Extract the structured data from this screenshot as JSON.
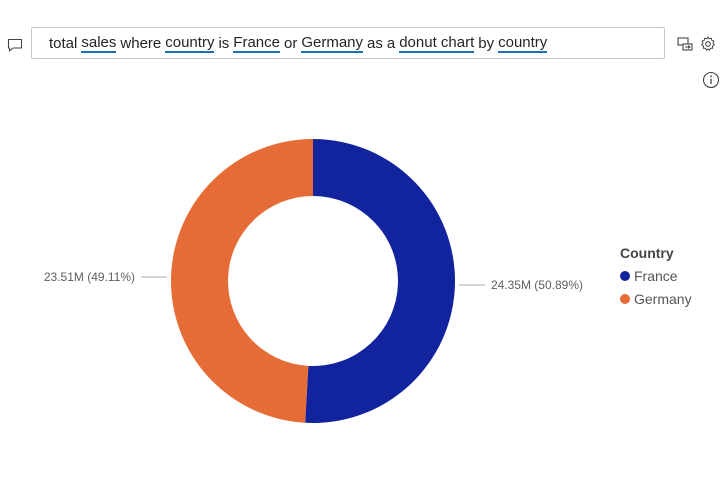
{
  "question": {
    "tokens": [
      {
        "text": "total",
        "term": false
      },
      {
        "text": "sales",
        "term": true
      },
      {
        "text": "where",
        "term": false
      },
      {
        "text": "country",
        "term": true
      },
      {
        "text": "is",
        "term": false
      },
      {
        "text": "France",
        "term": true
      },
      {
        "text": "or",
        "term": false
      },
      {
        "text": "Germany",
        "term": true
      },
      {
        "text": "as",
        "term": false
      },
      {
        "text": "a",
        "term": false
      },
      {
        "text": "donut chart",
        "term": true
      },
      {
        "text": "by",
        "term": false
      },
      {
        "text": "country",
        "term": true
      }
    ]
  },
  "icons": {
    "comment": "comment-icon",
    "convert": "convert-to-visual-icon",
    "settings": "gear-icon",
    "info": "info-icon"
  },
  "chart_data": {
    "type": "pie",
    "donut": true,
    "legend_title": "Country",
    "legend_position": "right",
    "slices": [
      {
        "name": "France",
        "value": 24.35,
        "percent": 50.89,
        "color": "#12239e",
        "label": "24.35M (50.89%)"
      },
      {
        "name": "Germany",
        "value": 23.51,
        "percent": 49.11,
        "color": "#e66c37",
        "label": "23.51M (49.11%)"
      }
    ]
  }
}
